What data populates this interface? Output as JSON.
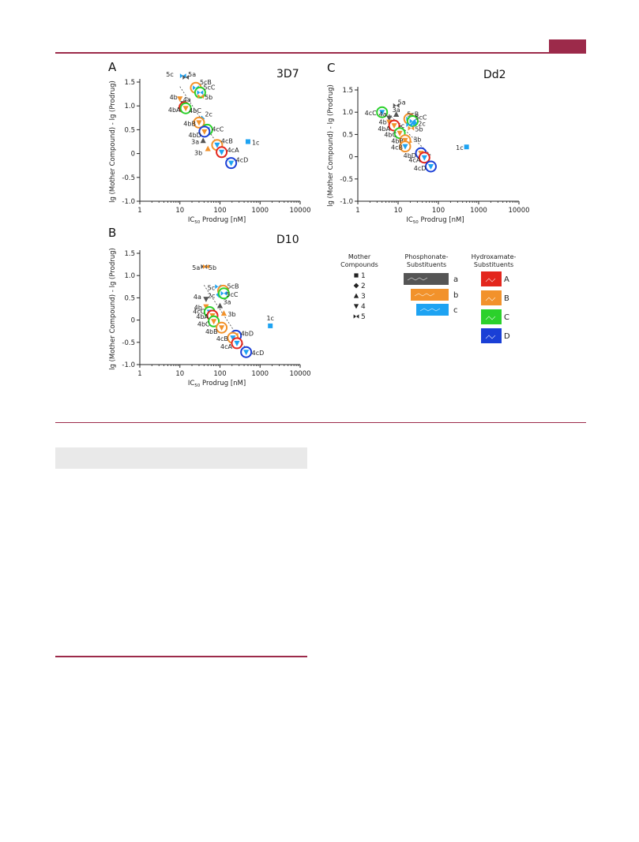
{
  "colors": {
    "accent": "#9c2a4a",
    "sub_a": "#555555",
    "sub_b": "#f2922b",
    "sub_c": "#1ea3f2",
    "hyd_A": "#e3261d",
    "hyd_B": "#f2922b",
    "hyd_C": "#2bd12b",
    "hyd_D": "#1a3fd6",
    "mother_marker": "#333333"
  },
  "chart_data": [
    {
      "panel": "A",
      "strain": "3D7",
      "type": "scatter",
      "xlabel": "IC50 Prodrug [nM]",
      "ylabel": "lg (Mother Compound) - lg (Prodrug)",
      "xscale": "log",
      "xlim": [
        1,
        10000
      ],
      "ylim": [
        -1.0,
        1.5
      ],
      "xticks": [
        "1",
        "10",
        "100",
        "1000",
        "10000"
      ],
      "yticks": [
        "1.5",
        "1.0",
        "0.5",
        "0",
        "-0.5",
        "-1.0"
      ],
      "points": [
        {
          "label": "5c",
          "x": 12,
          "y": 1.63
        },
        {
          "label": "5a",
          "x": 14,
          "y": 1.6
        },
        {
          "label": "5cB",
          "x": 25,
          "y": 1.38
        },
        {
          "label": "5cC",
          "x": 32,
          "y": 1.28
        },
        {
          "label": "5b",
          "x": 33,
          "y": 1.2
        },
        {
          "label": "4b",
          "x": 10,
          "y": 1.15
        },
        {
          "label": "4a",
          "x": 12,
          "y": 1.05
        },
        {
          "label": "4bA",
          "x": 13,
          "y": 0.97
        },
        {
          "label": "4bC",
          "x": 14,
          "y": 0.95
        },
        {
          "label": "2c",
          "x": 35,
          "y": 0.73
        },
        {
          "label": "4bB",
          "x": 30,
          "y": 0.65
        },
        {
          "label": "4cC",
          "x": 48,
          "y": 0.5
        },
        {
          "label": "4bD",
          "x": 41,
          "y": 0.46
        },
        {
          "label": "3a",
          "x": 38,
          "y": 0.27
        },
        {
          "label": "4cB",
          "x": 85,
          "y": 0.18
        },
        {
          "label": "3b",
          "x": 50,
          "y": 0.1
        },
        {
          "label": "4cA",
          "x": 110,
          "y": 0.03
        },
        {
          "label": "1c",
          "x": 500,
          "y": 0.25
        },
        {
          "label": "4cD",
          "x": 190,
          "y": -0.2
        }
      ]
    },
    {
      "panel": "C",
      "strain": "Dd2",
      "type": "scatter",
      "xlabel": "IC50 Prodrug [nM]",
      "ylabel": "lg (Mother Compound) - lg (Prodrug)",
      "xscale": "log",
      "xlim": [
        1,
        10000
      ],
      "ylim": [
        -1.0,
        1.5
      ],
      "xticks": [
        "1",
        "10",
        "100",
        "1000",
        "10000"
      ],
      "yticks": [
        "1.5",
        "1.0",
        "0.5",
        "0",
        "-0.5",
        "-1.0"
      ],
      "points": [
        {
          "label": "5a",
          "x": 9,
          "y": 1.15
        },
        {
          "label": "4cC",
          "x": 4,
          "y": 1.0
        },
        {
          "label": "3a",
          "x": 9,
          "y": 0.95
        },
        {
          "label": "4a",
          "x": 6,
          "y": 0.87
        },
        {
          "label": "5cB",
          "x": 19,
          "y": 0.85
        },
        {
          "label": "5cC",
          "x": 23,
          "y": 0.8
        },
        {
          "label": "2c",
          "x": 25,
          "y": 0.76
        },
        {
          "label": "4b",
          "x": 6,
          "y": 0.78
        },
        {
          "label": "5c",
          "x": 19,
          "y": 0.72
        },
        {
          "label": "5b",
          "x": 21,
          "y": 0.64
        },
        {
          "label": "4bA",
          "x": 8,
          "y": 0.7
        },
        {
          "label": "4bC",
          "x": 11,
          "y": 0.53
        },
        {
          "label": "3b",
          "x": 19,
          "y": 0.37
        },
        {
          "label": "4bB",
          "x": 15,
          "y": 0.37
        },
        {
          "label": "4cB",
          "x": 15,
          "y": 0.23
        },
        {
          "label": "1c",
          "x": 500,
          "y": 0.22
        },
        {
          "label": "4bD",
          "x": 37,
          "y": 0.08
        },
        {
          "label": "4cA",
          "x": 45,
          "y": -0.02
        },
        {
          "label": "4cD",
          "x": 65,
          "y": -0.22
        }
      ]
    },
    {
      "panel": "B",
      "strain": "D10",
      "type": "scatter",
      "xlabel": "IC50 Prodrug [nM]",
      "ylabel": "lg (Mother Compound) - lg (Prodrug)",
      "xscale": "log",
      "xlim": [
        1,
        10000
      ],
      "ylim": [
        -1.0,
        1.5
      ],
      "xticks": [
        "1",
        "10",
        "100",
        "1000",
        "10000"
      ],
      "yticks": [
        "1.5",
        "1.0",
        "0.5",
        "0",
        "-0.5",
        "-1.0"
      ],
      "points": [
        {
          "label": "5a",
          "x": 40,
          "y": 1.2
        },
        {
          "label": "5b",
          "x": 45,
          "y": 1.2
        },
        {
          "label": "5c",
          "x": 90,
          "y": 0.75
        },
        {
          "label": "5cB",
          "x": 120,
          "y": 0.66
        },
        {
          "label": "2c",
          "x": 95,
          "y": 0.57
        },
        {
          "label": "5cC",
          "x": 125,
          "y": 0.6
        },
        {
          "label": "4a",
          "x": 45,
          "y": 0.47
        },
        {
          "label": "3a",
          "x": 100,
          "y": 0.32
        },
        {
          "label": "4b",
          "x": 45,
          "y": 0.3
        },
        {
          "label": "4cC",
          "x": 55,
          "y": 0.18
        },
        {
          "label": "3b",
          "x": 125,
          "y": 0.15
        },
        {
          "label": "4bA",
          "x": 65,
          "y": 0.1
        },
        {
          "label": "4bC",
          "x": 70,
          "y": -0.03
        },
        {
          "label": "4bB",
          "x": 110,
          "y": -0.17
        },
        {
          "label": "4bD",
          "x": 250,
          "y": -0.35
        },
        {
          "label": "4cB",
          "x": 210,
          "y": -0.4
        },
        {
          "label": "4cA",
          "x": 265,
          "y": -0.52
        },
        {
          "label": "1c",
          "x": 1800,
          "y": -0.13
        },
        {
          "label": "4cD",
          "x": 450,
          "y": -0.72
        }
      ]
    }
  ],
  "panel_labels": {
    "a": "A",
    "b": "B",
    "c": "C"
  },
  "strain_labels": {
    "a": "3D7",
    "b": "D10",
    "c": "Dd2"
  },
  "axis_texts": {
    "ylabel": "lg (Mother Compound) - lg (Prodrug)",
    "xlabel_pre": "IC",
    "xlabel_sub": "50",
    "xlabel_post": " Prodrug [nM]"
  },
  "legend": {
    "mother_title_1": "Mother",
    "mother_title_2": "Compounds",
    "mothers": [
      {
        "symbol": "square",
        "label": "1"
      },
      {
        "symbol": "diamond",
        "label": "2"
      },
      {
        "symbol": "triangle-up",
        "label": "3"
      },
      {
        "symbol": "triangle-down",
        "label": "4"
      },
      {
        "symbol": "bowtie",
        "label": "5"
      }
    ],
    "phos_title_1": "Phosphonate-",
    "phos_title_2": "Substituents",
    "phosphonates": [
      {
        "label": "a",
        "color": "#555555"
      },
      {
        "label": "b",
        "color": "#f2922b"
      },
      {
        "label": "c",
        "color": "#1ea3f2"
      }
    ],
    "hyd_title_1": "Hydroxamate-",
    "hyd_title_2": "Substituents",
    "hydroxamates": [
      {
        "label": "A",
        "color": "#e3261d"
      },
      {
        "label": "B",
        "color": "#f2922b"
      },
      {
        "label": "C",
        "color": "#2bd12b"
      },
      {
        "label": "D",
        "color": "#1a3fd6"
      }
    ]
  }
}
